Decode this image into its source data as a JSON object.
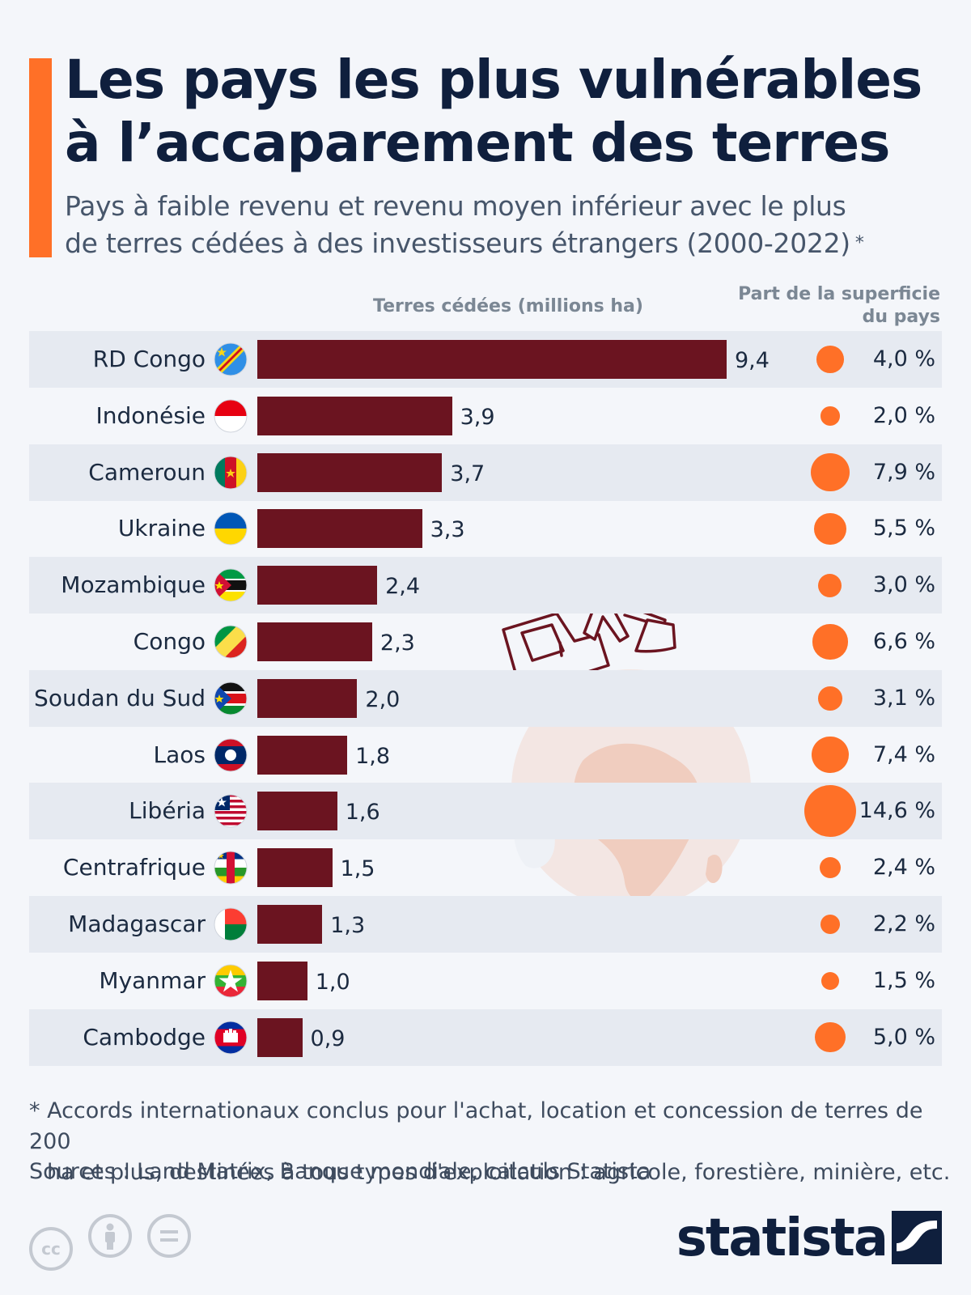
{
  "header": {
    "title_line1": "Les pays les plus vulnérables",
    "title_line2": "à l’accaparement des terres",
    "subtitle_line1": "Pays à faible revenu et revenu moyen inférieur avec le plus",
    "subtitle_line2": "de terres cédées à des investisseurs étrangers (2000-2022)",
    "subtitle_star": "*"
  },
  "columns": {
    "values": "Terres cédées (millions ha)",
    "share_line1": "Part de la superficie",
    "share_line2": "du pays"
  },
  "chart_data": {
    "type": "bar",
    "orientation": "horizontal",
    "categories": [
      "RD Congo",
      "Indonésie",
      "Cameroun",
      "Ukraine",
      "Mozambique",
      "Congo",
      "Soudan du Sud",
      "Laos",
      "Libéria",
      "Centrafrique",
      "Madagascar",
      "Myanmar",
      "Cambodge"
    ],
    "values": [
      9.4,
      3.9,
      3.7,
      3.3,
      2.4,
      2.3,
      2.0,
      1.8,
      1.6,
      1.5,
      1.3,
      1.0,
      0.9
    ],
    "value_labels": [
      "9,4",
      "3,9",
      "3,7",
      "3,3",
      "2,4",
      "2,3",
      "2,0",
      "1,8",
      "1,6",
      "1,5",
      "1,3",
      "1,0",
      "0,9"
    ],
    "share_values": [
      4.0,
      2.0,
      7.9,
      5.5,
      3.0,
      6.6,
      3.1,
      7.4,
      14.6,
      2.4,
      2.2,
      1.5,
      5.0
    ],
    "share_labels": [
      "4,0 %",
      "2,0 %",
      "7,9 %",
      "5,5 %",
      "3,0 %",
      "6,6 %",
      "3,1 %",
      "7,4 %",
      "14,6 %",
      "2,4 %",
      "2,2 %",
      "1,5 %",
      "5,0 %"
    ],
    "flag_icons": [
      "flag-cd-icon",
      "flag-id-icon",
      "flag-cm-icon",
      "flag-ua-icon",
      "flag-mz-icon",
      "flag-cg-icon",
      "flag-ss-icon",
      "flag-la-icon",
      "flag-lr-icon",
      "flag-cf-icon",
      "flag-mg-icon",
      "flag-mm-icon",
      "flag-kh-icon"
    ],
    "xlim": [
      0,
      9.4
    ],
    "colors": {
      "bar": "#6b1420",
      "dot": "#ff7027",
      "row_alt": "#e6eaf1",
      "accent": "#ff7027"
    }
  },
  "footer": {
    "note_line1": "* Accords internationaux conclus pour l'achat, location et concession de terres de 200",
    "note_line2": "ha et plus, destinées à tous types d'exploitation : agricole, forestière, minière, etc.",
    "sources": "Sources : Land Matrix, Banque mondiale, calculs Statista",
    "license_icons": [
      "cc-icon",
      "attribution-icon",
      "no-derivatives-icon"
    ],
    "cc_label": "cc",
    "brand": "statista"
  }
}
